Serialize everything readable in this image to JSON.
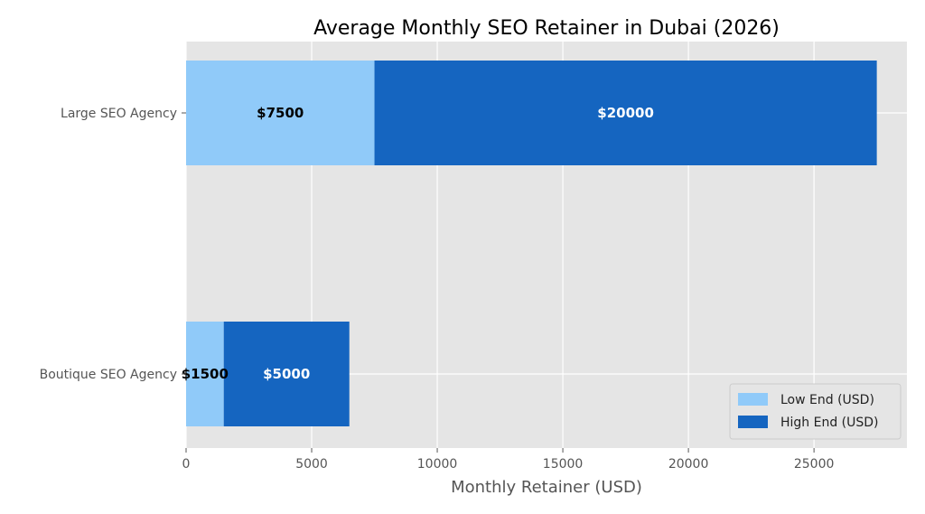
{
  "chart_data": {
    "type": "bar",
    "orientation": "horizontal",
    "stacked": true,
    "title": "Average Monthly SEO Retainer in Dubai (2026)",
    "xlabel": "Monthly Retainer (USD)",
    "ylabel": "",
    "xlim": [
      0,
      28700
    ],
    "x_ticks": [
      0,
      5000,
      10000,
      15000,
      20000,
      25000
    ],
    "x_tick_labels": [
      "0",
      "5000",
      "10000",
      "15000",
      "20000",
      "25000"
    ],
    "categories": [
      "Boutique SEO Agency",
      "Large SEO Agency"
    ],
    "series": [
      {
        "name": "Low End (USD)",
        "values": [
          1500,
          7500
        ],
        "labels": [
          "$1500",
          "$7500"
        ],
        "color": "#90caf9",
        "label_color": "#000000"
      },
      {
        "name": "High End (USD)",
        "values": [
          5000,
          20000
        ],
        "labels": [
          "$5000",
          "$20000"
        ],
        "color": "#1565c0",
        "label_color": "#ffffff"
      }
    ],
    "grid": true,
    "legend_position": "lower-right",
    "background": "#e5e5e5",
    "grid_color": "#ffffff"
  }
}
